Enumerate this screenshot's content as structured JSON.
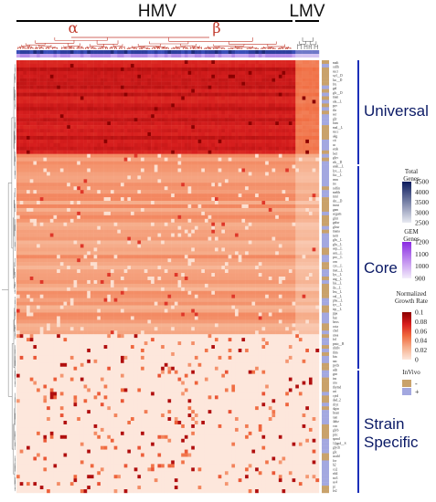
{
  "chart_data": {
    "type": "heatmap",
    "column_groups": [
      {
        "label": "HMV",
        "subgroups": [
          {
            "label": "α"
          },
          {
            "label": "β"
          }
        ]
      },
      {
        "label": "LMV"
      }
    ],
    "row_sections": [
      {
        "label": "Universal",
        "share": 0.22,
        "mean_growth": 0.085
      },
      {
        "label": "Core",
        "share": 0.42,
        "mean_growth": 0.025
      },
      {
        "label": "Strain Specific",
        "share": 0.36,
        "mean_growth": 0.003
      }
    ],
    "row_labels": [
      "malt",
      "cellb",
      "sucr",
      "xyl__D",
      "lac__D",
      "fru",
      "gal",
      "glc__D",
      "man",
      "ala__L",
      "pyr",
      "thr",
      "ser",
      "gly",
      "fum",
      "mal__L",
      "succ",
      "akg",
      "cit",
      "ac",
      "etoh",
      "lact",
      "glyc",
      "rib__D",
      "arab__L",
      "lyx__L",
      "fuc__L",
      "rmn",
      "tre",
      "raffin",
      "melib",
      "mnl",
      "sbt__D",
      "inost",
      "gam",
      "acgam",
      "glcn",
      "galur",
      "glcur",
      "mana",
      "tartr",
      "gln__L",
      "glu__L",
      "asp__L",
      "asn__L",
      "pro__L",
      "orn",
      "cys__L",
      "met__L",
      "lys__L",
      "arg__L",
      "his__L",
      "ile__L",
      "leu__L",
      "val__L",
      "phe__L",
      "tyr__L",
      "trp__L",
      "ppa",
      "but",
      "hexs",
      "octa",
      "chol",
      "urea",
      "fol",
      "pnto__R",
      "ribflv",
      "thm",
      "btn",
      "nac",
      "pydx",
      "adn",
      "gsn",
      "ins",
      "ura",
      "thymd",
      "uri",
      "cytd",
      "dad_2",
      "dcyt",
      "dgsn",
      "hxan",
      "xan",
      "4abz",
      "csn",
      "glyb",
      "ptrc",
      "spmd",
      "12ppd__S",
      "glyclt",
      "glx",
      "acald",
      "for",
      "h2",
      "co2",
      "nh4",
      "no3",
      "so4",
      "pi",
      "fe2"
    ],
    "color_scales": [
      {
        "title": "Total Genes",
        "ticks": [
          "4500",
          "4000",
          "3500",
          "3000",
          "2500"
        ],
        "colors": [
          "#0a1a5c",
          "#e8eaf2"
        ]
      },
      {
        "title": "GEM Genes",
        "ticks": [
          "1200",
          "1100",
          "1000",
          "900"
        ],
        "colors": [
          "#8a2be2",
          "#f4edfb"
        ]
      },
      {
        "title": "Normalized Growth Rate",
        "ticks": [
          "0.1",
          "0.08",
          "0.06",
          "0.04",
          "0.02",
          "0"
        ],
        "colors": [
          "#8b0000",
          "#d71e1e",
          "#f06a3f",
          "#f6b08e",
          "#fde7dc"
        ]
      },
      {
        "title": "InVivo",
        "entries": [
          {
            "label": "-",
            "color": "#c9a26b"
          },
          {
            "label": "+",
            "color": "#a3a8e0"
          }
        ]
      }
    ]
  }
}
